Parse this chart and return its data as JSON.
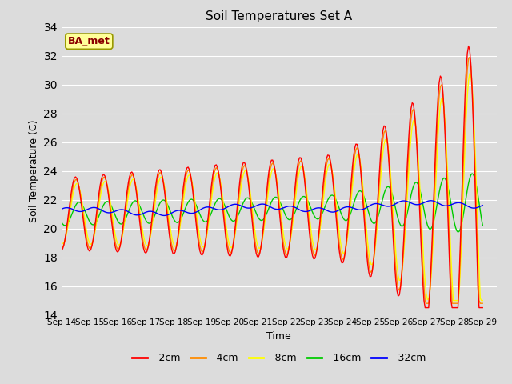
{
  "title": "Soil Temperatures Set A",
  "xlabel": "Time",
  "ylabel": "Soil Temperature (C)",
  "ylim": [
    14,
    34
  ],
  "yticks": [
    14,
    16,
    18,
    20,
    22,
    24,
    26,
    28,
    30,
    32,
    34
  ],
  "annotation": "BA_met",
  "annotation_color": "#8B0000",
  "annotation_bg": "#FFFF99",
  "annotation_edge": "#999900",
  "bg_color": "#DCDCDC",
  "grid_color": "#FFFFFF",
  "colors": {
    "-2cm": "#FF0000",
    "-4cm": "#FF8C00",
    "-8cm": "#FFFF00",
    "-16cm": "#00CC00",
    "-32cm": "#0000FF"
  },
  "x_tick_labels": [
    "Sep 14",
    "Sep 15",
    "Sep 16",
    "Sep 17",
    "Sep 18",
    "Sep 19",
    "Sep 20",
    "Sep 21",
    "Sep 22",
    "Sep 23",
    "Sep 24",
    "Sep 25",
    "Sep 26",
    "Sep 27",
    "Sep 28",
    "Sep 29"
  ],
  "n_points": 360
}
